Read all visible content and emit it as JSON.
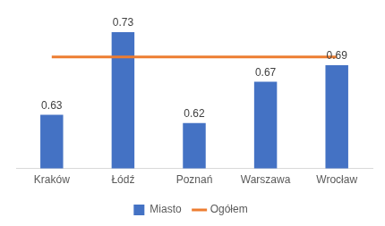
{
  "chart_data": {
    "type": "bar",
    "categories": [
      "Kraków",
      "Łódź",
      "Poznań",
      "Warszawa",
      "Wrocław"
    ],
    "series": [
      {
        "name": "Miasto",
        "type": "bar",
        "color": "#4472c4",
        "values": [
          0.63,
          0.73,
          0.62,
          0.67,
          0.69
        ],
        "data_labels": true
      },
      {
        "name": "Ogółem",
        "type": "line",
        "color": "#ed7d31",
        "values": [
          0.7,
          0.7,
          0.7,
          0.7,
          0.7
        ]
      }
    ],
    "ylim": [
      0.565,
      0.745
    ],
    "legend": "bottom",
    "grid": false,
    "tick_labels": "x"
  }
}
